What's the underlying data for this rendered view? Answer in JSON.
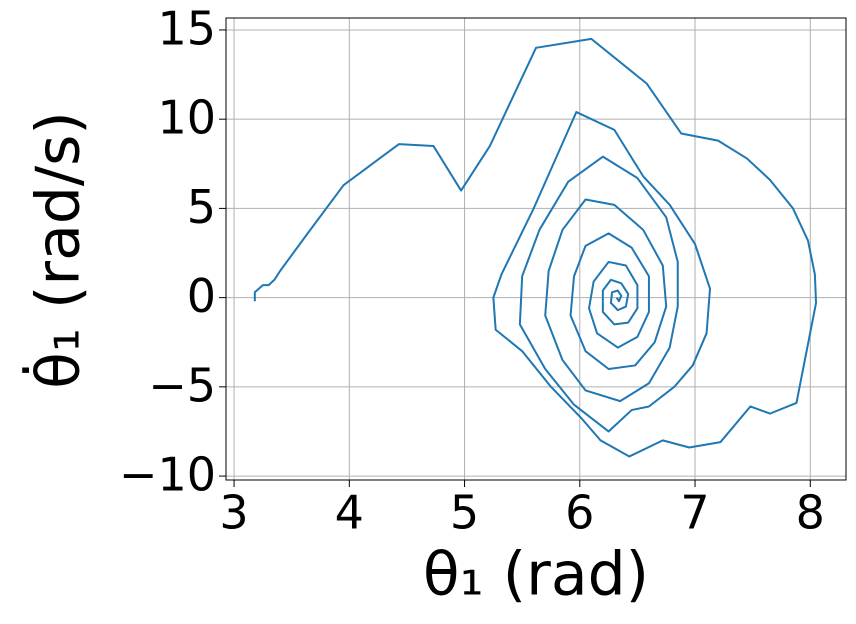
{
  "chart_data": {
    "type": "line",
    "xlabel": "θ₁ (rad)",
    "ylabel": "θ̇₁ (rad/s)",
    "color": "#1f77b4",
    "grid": true,
    "xlim": [
      2.93,
      8.31
    ],
    "ylim": [
      -10.22,
      15.67
    ],
    "xticks": [
      3,
      4,
      5,
      6,
      7,
      8
    ],
    "yticks": [
      15,
      10,
      5,
      0,
      {
        "value": -5,
        "label": "−5"
      },
      {
        "value": -10,
        "label": "−10"
      }
    ],
    "x": [
      3.18,
      3.18,
      3.25,
      3.3,
      3.35,
      3.4,
      3.65,
      3.95,
      4.2,
      4.43,
      4.73,
      4.97,
      5.22,
      5.62,
      6.1,
      6.58,
      6.88,
      7.2,
      7.45,
      7.65,
      7.85,
      7.98,
      8.04,
      8.05,
      7.88,
      7.65,
      7.48,
      7.22,
      6.95,
      6.72,
      6.43,
      6.18,
      6.02,
      5.75,
      5.5,
      5.27,
      5.25,
      5.32,
      5.6,
      5.97,
      6.3,
      6.55,
      6.78,
      7.0,
      7.13,
      7.1,
      6.98,
      6.82,
      6.6,
      6.45,
      6.25,
      5.95,
      5.7,
      5.48,
      5.5,
      5.65,
      5.9,
      6.2,
      6.5,
      6.75,
      6.85,
      6.85,
      6.78,
      6.6,
      6.35,
      6.05,
      5.85,
      5.7,
      5.73,
      5.85,
      6.05,
      6.3,
      6.55,
      6.72,
      6.75,
      6.65,
      6.48,
      6.25,
      6.05,
      5.92,
      5.95,
      6.05,
      6.25,
      6.45,
      6.6,
      6.6,
      6.5,
      6.33,
      6.15,
      6.08,
      6.12,
      6.25,
      6.4,
      6.5,
      6.5,
      6.42,
      6.3,
      6.2,
      6.2,
      6.27,
      6.36,
      6.42,
      6.4,
      6.33,
      6.27,
      6.28,
      6.33,
      6.36,
      6.34,
      6.32
    ],
    "values": [
      -0.2,
      0.3,
      0.7,
      0.7,
      1.0,
      1.5,
      3.7,
      6.3,
      7.5,
      8.6,
      8.5,
      6.0,
      8.5,
      14.0,
      14.5,
      12.0,
      9.2,
      8.8,
      7.8,
      6.6,
      5.0,
      3.2,
      1.3,
      -0.3,
      -5.9,
      -6.5,
      -6.1,
      -8.1,
      -8.4,
      -8.0,
      -8.9,
      -8.0,
      -6.8,
      -5.0,
      -3.0,
      -1.8,
      0,
      1.3,
      5.0,
      10.4,
      9.4,
      6.8,
      5.2,
      3.0,
      0.5,
      -2.0,
      -3.8,
      -5.0,
      -6.1,
      -6.3,
      -7.5,
      -6.0,
      -4.0,
      -1.5,
      1.2,
      3.8,
      6.5,
      7.9,
      6.7,
      4.5,
      2.0,
      -0.5,
      -2.8,
      -4.8,
      -5.8,
      -5.2,
      -3.5,
      -1.0,
      1.5,
      3.8,
      5.5,
      5.2,
      3.8,
      1.8,
      -0.5,
      -2.5,
      -3.8,
      -4.0,
      -3.0,
      -1.0,
      1.2,
      2.9,
      3.6,
      2.8,
      1.2,
      -0.8,
      -2.2,
      -2.8,
      -2.0,
      -0.6,
      0.9,
      2.0,
      1.8,
      0.7,
      -0.6,
      -1.4,
      -1.5,
      -0.8,
      0.4,
      1.0,
      0.8,
      0.2,
      -0.5,
      -0.7,
      -0.3,
      0.3,
      0.4,
      0.1,
      -0.2,
      0
    ]
  }
}
